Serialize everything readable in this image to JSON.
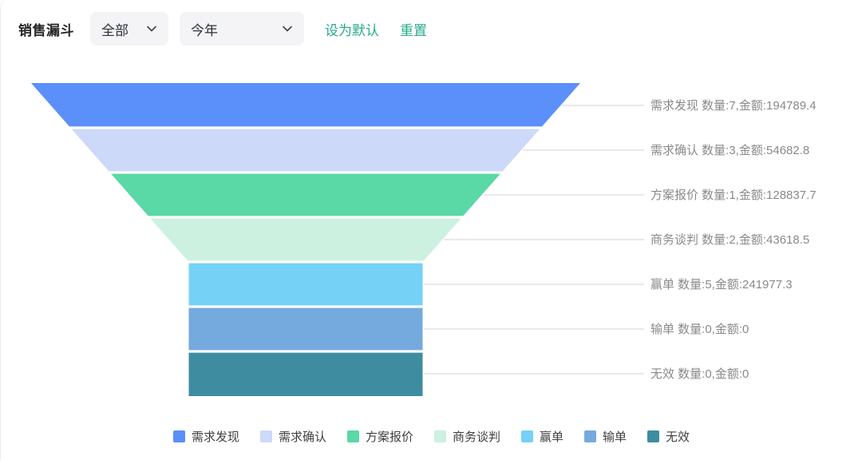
{
  "header": {
    "title": "销售漏斗",
    "filters": [
      {
        "value": "全部"
      },
      {
        "value": "今年"
      }
    ],
    "actions": {
      "set_default": "设为默认",
      "reset": "重置"
    }
  },
  "chart_data": {
    "type": "funnel",
    "title": "销售漏斗",
    "label_format": "{name} 数量:{count},金额:{amount}",
    "label_position": "right",
    "legend_position": "bottom",
    "stages": [
      {
        "name": "需求发现",
        "count": 7,
        "amount": 194789.4,
        "color": "#5b8ff9"
      },
      {
        "name": "需求确认",
        "count": 3,
        "amount": 54682.8,
        "color": "#cdd9f8"
      },
      {
        "name": "方案报价",
        "count": 1,
        "amount": 128837.7,
        "color": "#5ad8a6"
      },
      {
        "name": "商务谈判",
        "count": 2,
        "amount": 43618.5,
        "color": "#ccf1e1"
      },
      {
        "name": "赢单",
        "count": 5,
        "amount": 241977.3,
        "color": "#76d1f6"
      },
      {
        "name": "输单",
        "count": 0,
        "amount": 0,
        "color": "#74aade"
      },
      {
        "name": "无效",
        "count": 0,
        "amount": 0,
        "color": "#3e8ca0"
      }
    ]
  },
  "colors": {
    "accent": "#28aa8c",
    "funnel_label_text": "#8a8a8a",
    "connector_line": "#dcdcdc",
    "legend_text": "#404040"
  }
}
